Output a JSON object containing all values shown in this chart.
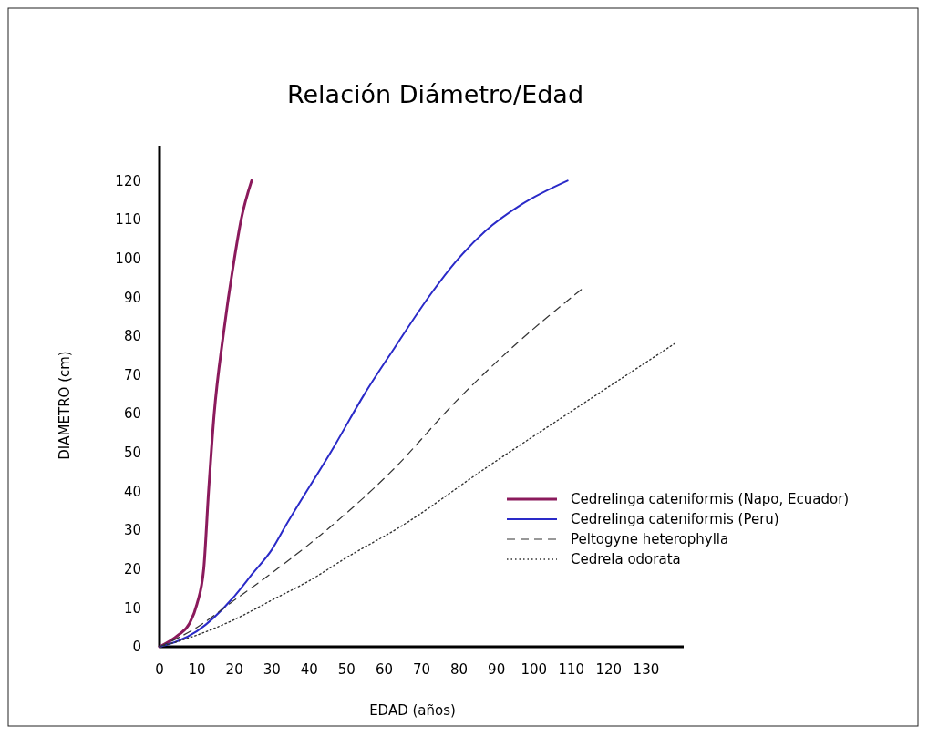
{
  "chart_data": {
    "type": "line",
    "title": "Relación Diámetro/Edad",
    "xlabel": "EDAD (años)",
    "ylabel": "DIAMETRO (cm)",
    "xlim": [
      0,
      140
    ],
    "xticks": [
      0,
      10,
      20,
      30,
      40,
      50,
      60,
      70,
      80,
      90,
      100,
      110,
      120,
      130
    ],
    "ylim": [
      0,
      129
    ],
    "yticks": [
      0,
      10,
      20,
      30,
      40,
      50,
      60,
      70,
      80,
      90,
      100,
      110,
      120
    ],
    "legend": "bottom right",
    "grid": false,
    "series": [
      {
        "name": "Cedrelinga cateniformis (Napo, Ecuador)",
        "color": "#8b1a5c",
        "line_style": "solid",
        "x": [
          0,
          5,
          8,
          10,
          11.8,
          13.1,
          14.6,
          17,
          20,
          21.8,
          24.6
        ],
        "values": [
          0,
          3,
          6,
          11,
          20,
          40,
          60,
          80,
          100,
          110,
          120
        ]
      },
      {
        "name": "Cedrelinga cateniformis (Peru)",
        "color": "#2a2ac8",
        "line_style": "solid",
        "x": [
          0,
          10,
          20,
          25,
          30,
          33.6,
          46.6,
          54.7,
          62.8,
          72.6,
          79,
          87,
          96.9,
          109
        ],
        "values": [
          0,
          4,
          13,
          19,
          25,
          31,
          51.5,
          65,
          77,
          91,
          99,
          107,
          114,
          120
        ]
      },
      {
        "name": "Peltogyne heterophylla",
        "color": "#333333",
        "line_style": "dashed",
        "x": [
          0,
          10,
          20,
          30,
          45.8,
          62.8,
          79,
          95.3,
          112.7
        ],
        "values": [
          0,
          5,
          12,
          19,
          31,
          46,
          63,
          78,
          92
        ]
      },
      {
        "name": "Cedrela odorata",
        "color": "#333333",
        "line_style": "dotted",
        "x": [
          0,
          10,
          20,
          30,
          40,
          50,
          64.5,
          87.1,
          111.4,
          137.5
        ],
        "values": [
          0,
          3,
          7,
          12,
          17,
          23,
          31,
          46,
          61.5,
          78
        ]
      }
    ]
  }
}
